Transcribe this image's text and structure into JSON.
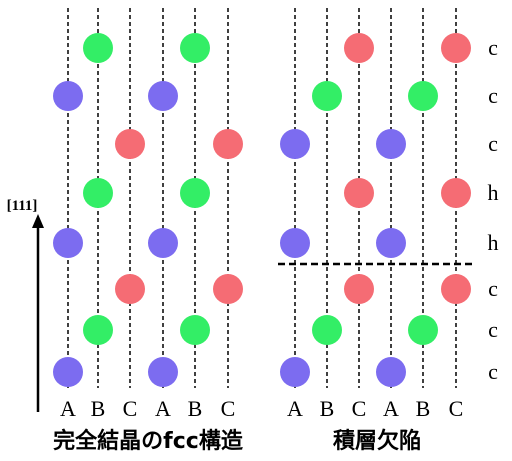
{
  "colors": {
    "A": "#7c6cf0",
    "B": "#33ee66",
    "C": "#f56c74",
    "line": "#000000"
  },
  "axis": {
    "label": "[111]"
  },
  "left_panel": {
    "caption": "完全結晶のfcc構造",
    "columns": [
      "A",
      "B",
      "C",
      "A",
      "B",
      "C"
    ],
    "layers_bottom_to_top": [
      "A",
      "B",
      "C",
      "A",
      "B",
      "C",
      "A",
      "B"
    ]
  },
  "right_panel": {
    "caption": "積層欠陥",
    "columns": [
      "A",
      "B",
      "C",
      "A",
      "B",
      "C"
    ],
    "layers_bottom_to_top": [
      "A",
      "B",
      "C",
      "A",
      "C",
      "A",
      "B",
      "C"
    ],
    "layer_labels_bottom_to_top": [
      "c",
      "c",
      "c",
      "h",
      "h",
      "c",
      "c",
      "c"
    ],
    "fault_after_layer_index": 2
  }
}
